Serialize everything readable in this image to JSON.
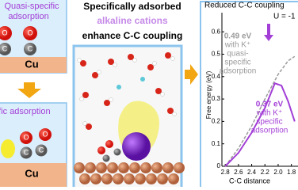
{
  "left": {
    "top_label": [
      "Quasi-specific",
      "adsorption"
    ],
    "top_surface": "Cu",
    "bottom_label": "specific adsorption",
    "bottom_surface": "Cu",
    "atom_o": "O",
    "atom_c": "C"
  },
  "center": {
    "line1": "Specifically adsorbed",
    "line2": "alkaline cations",
    "line3": "enhance C-C coupling"
  },
  "chart_data": {
    "type": "line",
    "title": "Reduced C-C coupling",
    "potential": "U = -1",
    "xlabel": "C-C distance",
    "ylabel": "Free energy (eV)",
    "xlim": [
      2.85,
      1.7
    ],
    "ylim": [
      0,
      0.65
    ],
    "xticks": [
      2.8,
      2.6,
      2.4,
      2.2,
      {
        "value": 2,
        "label": "2.0"
      },
      1.8
    ],
    "yticks": [
      0,
      0.1,
      0.2,
      0.3,
      0.4,
      0.5,
      0.6
    ],
    "series": [
      {
        "name": "quasi-specific",
        "color": "#9a9a9a",
        "dashed": true,
        "x": [
          2.8,
          2.6,
          2.4,
          2.2,
          2.0,
          1.85,
          1.75
        ],
        "values": [
          0,
          0.08,
          0.18,
          0.3,
          0.41,
          0.47,
          0.49
        ]
      },
      {
        "name": "specific",
        "color": "#a33fd6",
        "dashed": false,
        "x": [
          2.8,
          2.6,
          2.4,
          2.2,
          2.05,
          1.95,
          1.85,
          1.75
        ],
        "values": [
          0,
          0.06,
          0.15,
          0.26,
          0.37,
          0.36,
          0.29,
          0.2
        ]
      }
    ],
    "annotations": [
      {
        "lines": [
          "0.49 eV",
          "with K⁺",
          "quasi-",
          "specific",
          "adsorption"
        ],
        "color": "#9a9a9a"
      },
      {
        "lines": [
          "0.37 eV",
          "with K⁺",
          "specific",
          "adsorption"
        ],
        "color": "#a33fd6"
      }
    ]
  }
}
